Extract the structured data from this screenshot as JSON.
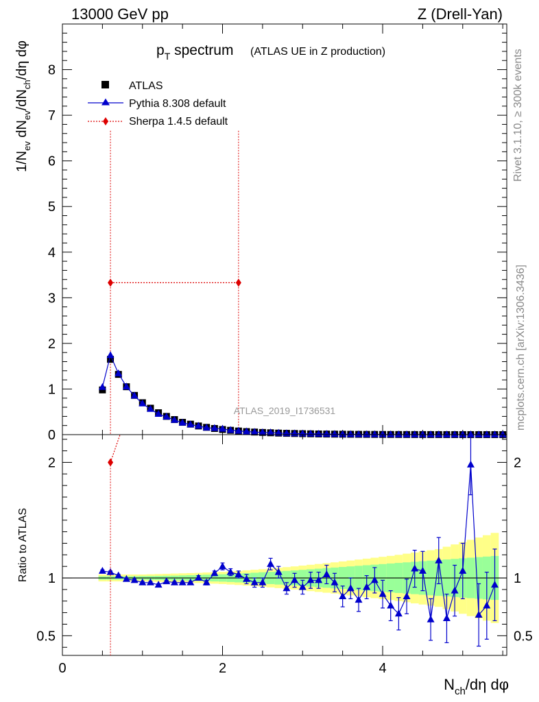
{
  "header": {
    "energy_label": "13000 GeV pp",
    "process_label": "Z (Drell-Yan)"
  },
  "side_labels": {
    "rivet": "Rivet 3.1.10, ≥ 300k events",
    "mcplots": "mcplots.cern.ch [arXiv:1306.3436]"
  },
  "watermark": "ATLAS_2019_I1736531",
  "colors": {
    "data": "#000000",
    "pythia": "#0000cc",
    "sherpa": "#dd0000",
    "band_inner": "#99ff99",
    "band_outer": "#ffff88"
  },
  "chart_data": [
    {
      "type": "scatter",
      "panel": "main",
      "title": "pT spectrum",
      "title_main": "p",
      "title_sub": "T",
      "title_word": " spectrum",
      "title_note": "(ATLAS UE in Z production)",
      "xlabel": "Nch/dη dφ",
      "ylabel": "1/Nev dNev/dNch/dη dφ",
      "xlim": [
        0,
        5.55
      ],
      "ylim": [
        0,
        9.0
      ],
      "yticks": [
        0,
        1,
        2,
        3,
        4,
        5,
        6,
        7,
        8
      ],
      "ytick_labels": [
        "0",
        "1",
        "2",
        "3",
        "4",
        "5",
        "6",
        "7",
        "8"
      ],
      "x": [
        0.5,
        0.6,
        0.7,
        0.8,
        0.9,
        1.0,
        1.1,
        1.2,
        1.3,
        1.4,
        1.5,
        1.6,
        1.7,
        1.8,
        1.9,
        2.0,
        2.1,
        2.2,
        2.3,
        2.4,
        2.5,
        2.6,
        2.7,
        2.8,
        2.9,
        3.0,
        3.1,
        3.2,
        3.3,
        3.4,
        3.5,
        3.6,
        3.7,
        3.8,
        3.9,
        4.0,
        4.1,
        4.2,
        4.3,
        4.4,
        4.5,
        4.6,
        4.7,
        4.8,
        4.9,
        5.0,
        5.1,
        5.2,
        5.3,
        5.4,
        5.5
      ],
      "series": [
        {
          "name": "ATLAS",
          "marker": "square",
          "values": [
            0.98,
            1.65,
            1.32,
            1.05,
            0.86,
            0.7,
            0.58,
            0.48,
            0.4,
            0.33,
            0.27,
            0.23,
            0.19,
            0.16,
            0.135,
            0.113,
            0.095,
            0.08,
            0.067,
            0.057,
            0.048,
            0.041,
            0.034,
            0.029,
            0.025,
            0.021,
            0.018,
            0.015,
            0.013,
            0.011,
            0.0095,
            0.008,
            0.0069,
            0.0059,
            0.005,
            0.0043,
            0.0037,
            0.0031,
            0.0027,
            0.0023,
            0.002,
            0.0017,
            0.0014,
            0.0012,
            0.001,
            0.0009,
            0.0008,
            0.0007,
            0.0006,
            0.0005,
            0.0004
          ]
        },
        {
          "name": "Pythia 8.308 default",
          "marker": "triangle",
          "values": [
            1.04,
            1.74,
            1.34,
            1.05,
            0.85,
            0.68,
            0.56,
            0.45,
            0.39,
            0.32,
            0.26,
            0.22,
            0.19,
            0.15,
            0.14,
            0.125,
            0.098,
            0.081,
            0.068,
            0.056,
            0.047,
            0.046,
            0.035,
            0.027,
            0.025,
            0.02,
            0.018,
            0.015,
            0.0135,
            0.0105,
            0.008,
            0.0073,
            0.0056,
            0.0053,
            0.0049,
            0.0037,
            0.003,
            0.0022,
            0.0023,
            0.0025,
            0.0022,
            0.0011,
            0.0013,
            0.0008,
            0.0009,
            0.0009,
            0.0016,
            0.0005,
            0.00045,
            0.0005,
            0.0004
          ]
        },
        {
          "name": "Sherpa 1.4.5 default",
          "marker": "diamond",
          "x": [
            0.6,
            2.2
          ],
          "values": [
            3.33,
            3.33
          ],
          "err_lo": [
            3.33,
            3.33
          ],
          "err_hi": [
            3.33,
            3.33
          ]
        }
      ]
    },
    {
      "type": "scatter",
      "panel": "ratio",
      "ylabel": "Ratio to ATLAS",
      "xlabel": "Nch/dη dφ",
      "xlim": [
        0,
        5.55
      ],
      "ylim": [
        0.33,
        2.24
      ],
      "yticks": [
        0.5,
        1,
        2
      ],
      "ytick_labels": [
        "0.5",
        "1",
        "2"
      ],
      "xticks": [
        0,
        2,
        4
      ],
      "xtick_labels": [
        "0",
        "2",
        "4"
      ],
      "pythia_ratio": {
        "x": [
          0.5,
          0.6,
          0.7,
          0.8,
          0.9,
          1.0,
          1.1,
          1.2,
          1.3,
          1.4,
          1.5,
          1.6,
          1.7,
          1.8,
          1.9,
          2.0,
          2.1,
          2.2,
          2.3,
          2.4,
          2.5,
          2.6,
          2.7,
          2.8,
          2.9,
          3.0,
          3.1,
          3.2,
          3.3,
          3.4,
          3.5,
          3.6,
          3.7,
          3.8,
          3.9,
          4.0,
          4.1,
          4.2,
          4.3,
          4.4,
          4.5,
          4.6,
          4.7,
          4.8,
          4.9,
          5.0,
          5.1,
          5.2,
          5.3,
          5.4
        ],
        "values": [
          1.06,
          1.05,
          1.02,
          0.99,
          0.98,
          0.96,
          0.96,
          0.94,
          0.97,
          0.96,
          0.96,
          0.96,
          1.0,
          0.96,
          1.04,
          1.1,
          1.05,
          1.03,
          0.99,
          0.96,
          0.96,
          1.12,
          1.05,
          0.91,
          0.98,
          0.92,
          0.98,
          0.98,
          1.03,
          0.96,
          0.84,
          0.91,
          0.81,
          0.92,
          0.98,
          0.86,
          0.76,
          0.69,
          0.84,
          1.08,
          1.06,
          0.64,
          1.15,
          0.65,
          0.89,
          1.06,
          1.98,
          0.68,
          0.76,
          0.94
        ],
        "errors": [
          0.01,
          0.01,
          0.01,
          0.01,
          0.01,
          0.01,
          0.01,
          0.01,
          0.01,
          0.01,
          0.01,
          0.01,
          0.02,
          0.02,
          0.02,
          0.03,
          0.03,
          0.03,
          0.04,
          0.04,
          0.04,
          0.05,
          0.05,
          0.05,
          0.06,
          0.06,
          0.07,
          0.07,
          0.08,
          0.08,
          0.09,
          0.09,
          0.1,
          0.1,
          0.11,
          0.12,
          0.13,
          0.14,
          0.15,
          0.16,
          0.17,
          0.18,
          0.2,
          0.21,
          0.22,
          0.24,
          0.26,
          0.27,
          0.29,
          0.31
        ]
      },
      "sherpa_ratio": {
        "x": [
          0.6
        ],
        "values": [
          2.0
        ],
        "err_lo": [
          1.8
        ]
      },
      "band_x_edges": [
        0.45,
        0.55,
        0.65,
        0.75,
        0.85,
        0.95,
        1.05,
        1.15,
        1.25,
        1.35,
        1.45,
        1.55,
        1.65,
        1.75,
        1.85,
        1.95,
        2.05,
        2.15,
        2.25,
        2.35,
        2.45,
        2.55,
        2.65,
        2.75,
        2.85,
        2.95,
        3.05,
        3.15,
        3.25,
        3.35,
        3.45,
        3.55,
        3.65,
        3.75,
        3.85,
        3.95,
        4.05,
        4.15,
        4.25,
        4.35,
        4.45,
        4.55,
        4.65,
        4.75,
        4.85,
        4.95,
        5.05,
        5.15,
        5.25,
        5.35,
        5.45
      ],
      "band_inner": [
        0.015,
        0.015,
        0.015,
        0.015,
        0.015,
        0.016,
        0.017,
        0.018,
        0.019,
        0.02,
        0.022,
        0.024,
        0.026,
        0.028,
        0.03,
        0.032,
        0.035,
        0.038,
        0.041,
        0.045,
        0.049,
        0.053,
        0.057,
        0.061,
        0.065,
        0.07,
        0.075,
        0.08,
        0.085,
        0.09,
        0.095,
        0.1,
        0.105,
        0.11,
        0.115,
        0.12,
        0.125,
        0.13,
        0.135,
        0.14,
        0.145,
        0.15,
        0.155,
        0.16,
        0.165,
        0.17,
        0.175,
        0.18,
        0.185,
        0.19
      ],
      "band_outer": [
        0.03,
        0.03,
        0.03,
        0.03,
        0.03,
        0.03,
        0.032,
        0.034,
        0.036,
        0.038,
        0.04,
        0.042,
        0.044,
        0.047,
        0.05,
        0.053,
        0.057,
        0.061,
        0.066,
        0.071,
        0.076,
        0.082,
        0.088,
        0.094,
        0.1,
        0.107,
        0.114,
        0.121,
        0.128,
        0.135,
        0.143,
        0.151,
        0.159,
        0.167,
        0.175,
        0.183,
        0.191,
        0.2,
        0.21,
        0.22,
        0.23,
        0.24,
        0.25,
        0.27,
        0.29,
        0.31,
        0.33,
        0.35,
        0.37,
        0.39
      ]
    }
  ]
}
